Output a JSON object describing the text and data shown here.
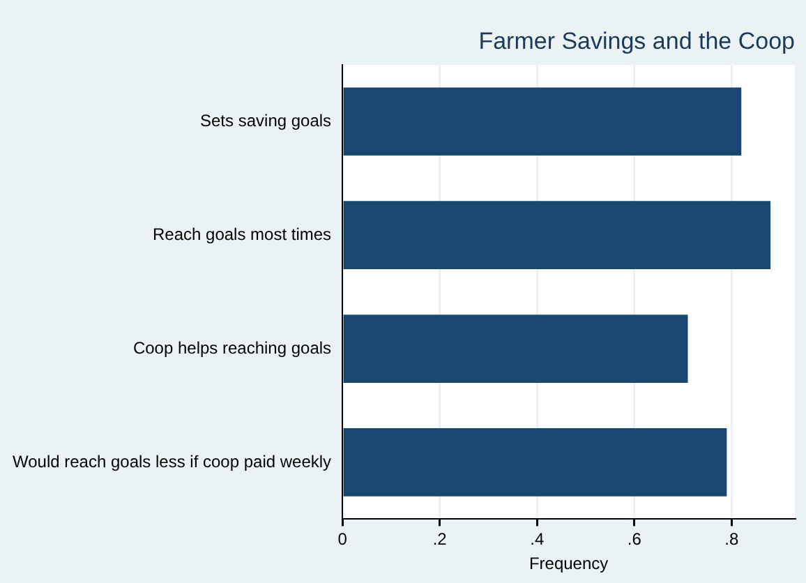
{
  "chart_data": {
    "type": "bar",
    "orientation": "horizontal",
    "title": "Farmer Savings and the Coop",
    "xlabel": "Frequency",
    "categories": [
      "Sets saving goals",
      "Reach goals most times",
      "Coop helps reaching goals",
      "Would reach goals less if coop paid weekly"
    ],
    "values": [
      0.82,
      0.88,
      0.71,
      0.79
    ],
    "color": "#1a476f",
    "xlim": [
      0,
      0.93
    ],
    "xticks": [
      0,
      {
        "value": 0.2,
        "label": ".2"
      },
      {
        "value": 0.4,
        "label": ".4"
      },
      {
        "value": 0.6,
        "label": ".6"
      },
      {
        "value": 0.8,
        "label": ".8"
      }
    ],
    "grid": "x",
    "legend": false
  }
}
